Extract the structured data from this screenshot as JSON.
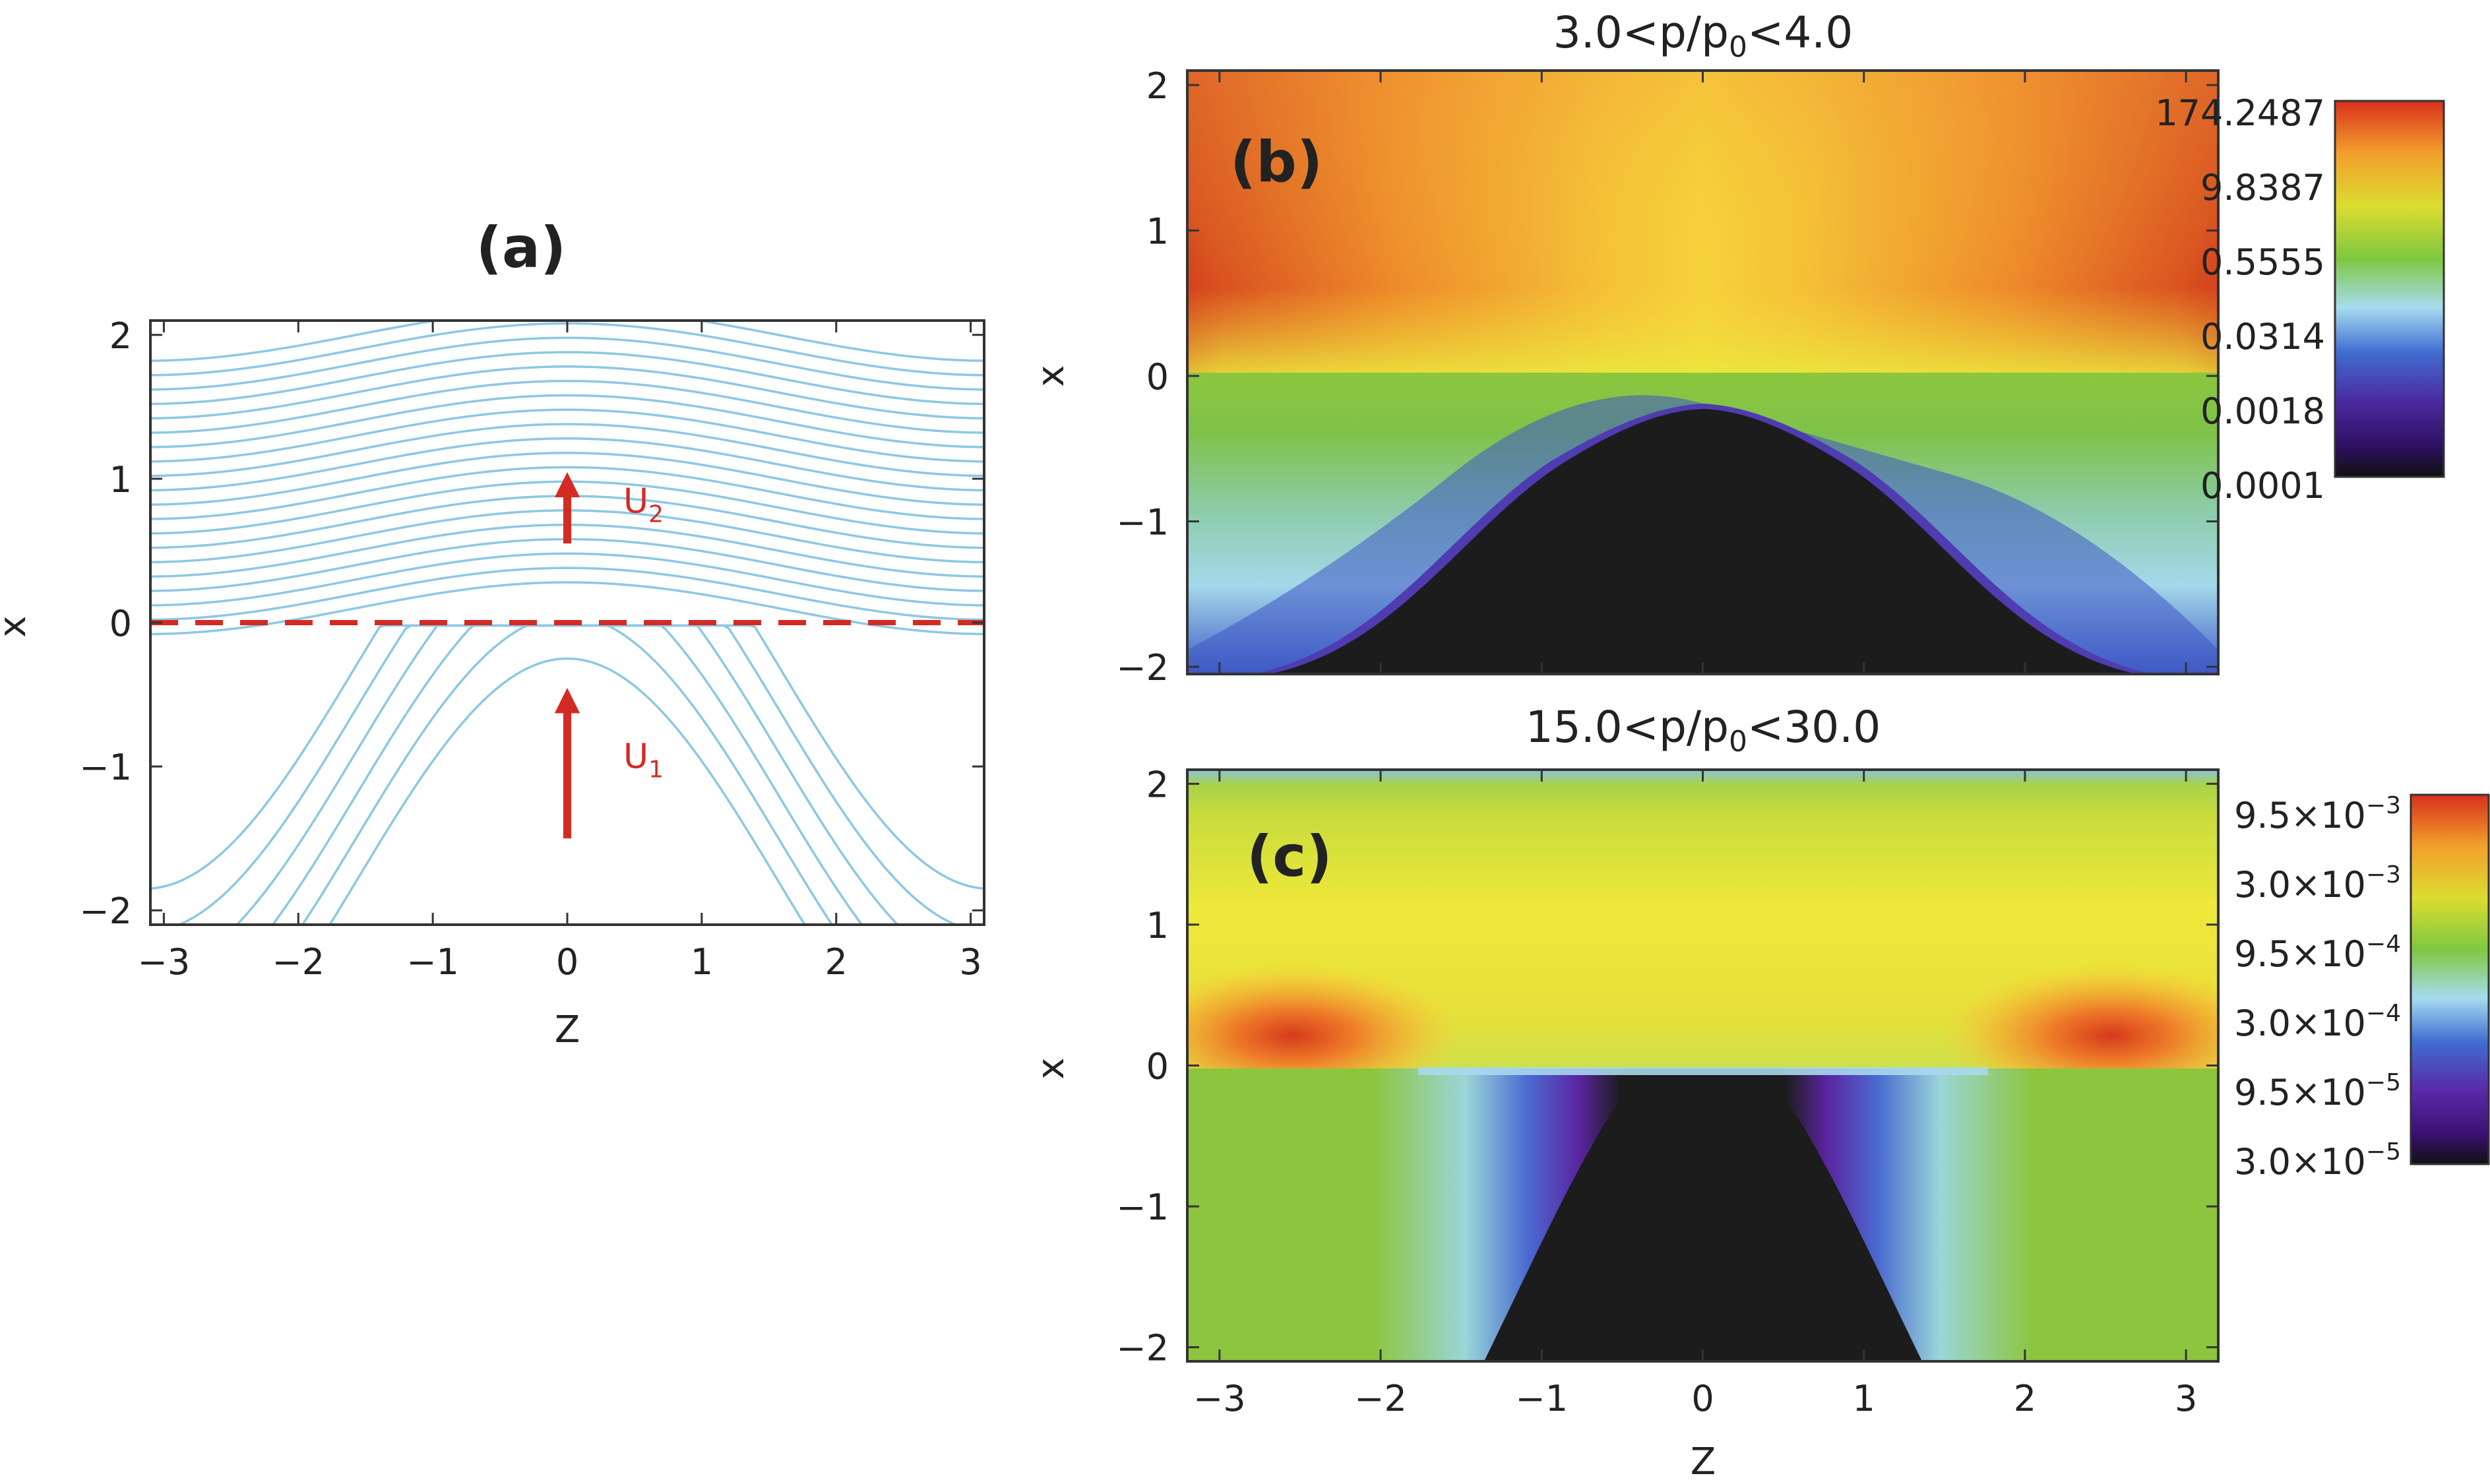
{
  "chart_data": [
    {
      "panel": "a",
      "type": "line",
      "panel_label": "(a)",
      "title": "",
      "xlabel": "Z",
      "ylabel": "x",
      "xlim": [
        -3.1,
        3.1
      ],
      "ylim": [
        -2.1,
        2.1
      ],
      "xticks": [
        -3,
        -2,
        -1,
        0,
        1,
        2,
        3
      ],
      "yticks": [
        -2,
        -1,
        0,
        1,
        2
      ],
      "xtick_labels": [
        "−3",
        "−2",
        "−1",
        "0",
        "1",
        "2",
        "3"
      ],
      "ytick_labels": [
        "−2",
        "−1",
        "0",
        "1",
        "2"
      ],
      "field_lines": {
        "downstream_offsets": [
          0.1,
          0.2,
          0.3,
          0.4,
          0.5,
          0.6,
          0.7,
          0.8,
          0.9,
          1.0,
          1.1,
          1.2,
          1.3,
          1.4,
          1.5,
          1.6,
          1.7,
          1.8,
          1.9,
          2.0
        ],
        "downstream_amplitude": 0.18,
        "upstream_offsets": [
          -0.3,
          -0.6,
          -0.9,
          -1.2,
          -1.5,
          -1.8
        ],
        "upstream_amplitude": 1.55,
        "color": "#8cc8e4"
      },
      "shock": {
        "x": 0,
        "color": "#d42a24",
        "style": "dashed"
      },
      "arrows": [
        {
          "label": "U",
          "subscript": "2",
          "z": 0.0,
          "x_from": 0.55,
          "x_to": 1.05,
          "color": "#d42a24"
        },
        {
          "label": "U",
          "subscript": "1",
          "z": 0.0,
          "x_from": -1.5,
          "x_to": -0.45,
          "color": "#d42a24"
        }
      ]
    },
    {
      "panel": "b",
      "type": "heatmap",
      "panel_label": "(b)",
      "title_main": "3.0<p/p",
      "title_sub": "0",
      "title_end": "<4.0",
      "xlabel": "",
      "ylabel": "x",
      "xlim": [
        -3.2,
        3.2
      ],
      "ylim": [
        -2.05,
        2.1
      ],
      "xticks": [
        -3,
        -2,
        -1,
        0,
        1,
        2,
        3
      ],
      "yticks": [
        -2,
        -1,
        0,
        1,
        2
      ],
      "ytick_labels": [
        "−2",
        "−1",
        "0",
        "1",
        "2"
      ],
      "colorbar": {
        "scale": "log",
        "labels": [
          "174.2487",
          "9.8387",
          "0.5555",
          "0.0314",
          "0.0018",
          "0.0001"
        ],
        "colors": [
          "#111111",
          "#3c1a80",
          "#3f56c6",
          "#a6dcef",
          "#7ec840",
          "#dcdc30",
          "#f2a02c",
          "#d83a1c"
        ]
      },
      "description_regions": {
        "shock_x": 0,
        "empty_region": "black arch centered at Z=0 below shock, apex near x=-0.2"
      }
    },
    {
      "panel": "c",
      "type": "heatmap",
      "panel_label": "(c)",
      "title_main": "15.0<p/p",
      "title_sub": "0",
      "title_end": "<30.0",
      "xlabel": "Z",
      "ylabel": "x",
      "xlim": [
        -3.2,
        3.2
      ],
      "ylim": [
        -2.1,
        2.1
      ],
      "xticks": [
        -3,
        -2,
        -1,
        0,
        1,
        2,
        3
      ],
      "xtick_labels": [
        "−3",
        "−2",
        "−1",
        "0",
        "1",
        "2",
        "3"
      ],
      "yticks": [
        -2,
        -1,
        0,
        1,
        2
      ],
      "ytick_labels": [
        "−2",
        "−1",
        "0",
        "1",
        "2"
      ],
      "colorbar": {
        "scale": "log",
        "labels": [
          {
            "mant": "9.5×10",
            "exp": "−3"
          },
          {
            "mant": "3.0×10",
            "exp": "−3"
          },
          {
            "mant": "9.5×10",
            "exp": "−4"
          },
          {
            "mant": "3.0×10",
            "exp": "−4"
          },
          {
            "mant": "9.5×10",
            "exp": "−5"
          },
          {
            "mant": "3.0×10",
            "exp": "−5"
          }
        ],
        "colors": [
          "#111111",
          "#4a1a8c",
          "#3f56c6",
          "#a6dcef",
          "#7ec840",
          "#dcdc30",
          "#f2a02c",
          "#d83a1c"
        ]
      },
      "description_regions": {
        "shock_x": 0,
        "peaks": "red maxima just above shock near Z=±2.5"
      }
    }
  ]
}
